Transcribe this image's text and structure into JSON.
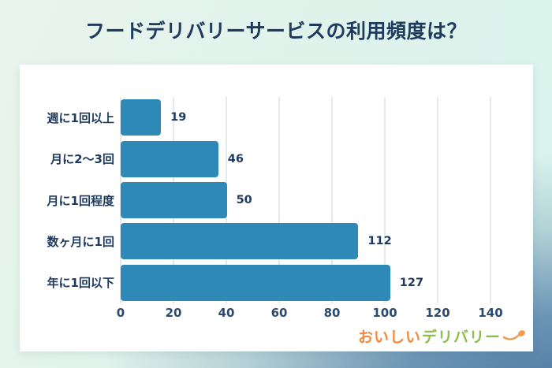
{
  "title": "フードデリバリーサービスの利用頻度は？",
  "chart_data": {
    "type": "bar",
    "orientation": "horizontal",
    "title": "フードデリバリーサービスの利用頻度は？",
    "categories": [
      "週に1回以上",
      "月に2～3回",
      "月に1回程度",
      "数ヶ月に1回",
      "年に1回以下"
    ],
    "values": [
      19,
      46,
      50,
      112,
      127
    ],
    "xlim": [
      0,
      140
    ],
    "x_ticks": [
      "0",
      "20",
      "40",
      "60",
      "80",
      "100",
      "120",
      "140"
    ],
    "grid": true,
    "legend_position": "none",
    "bar_color": "#2e89b7"
  },
  "logo": {
    "text_orange": "おいしい",
    "text_green": "デリバリー",
    "spoon_icon_color": "#f09d52"
  },
  "colors": {
    "title_text": "#1e3a5e",
    "category_text": "#1f3a5e",
    "value_text": "#1f3a5e",
    "tick_text": "#2b4a6d",
    "bar": "#2e89b7",
    "gridline": "#e4e9ec",
    "card_background": "#ffffff",
    "background_mint": "#def3eb",
    "background_blue": "#4e7ba5"
  }
}
